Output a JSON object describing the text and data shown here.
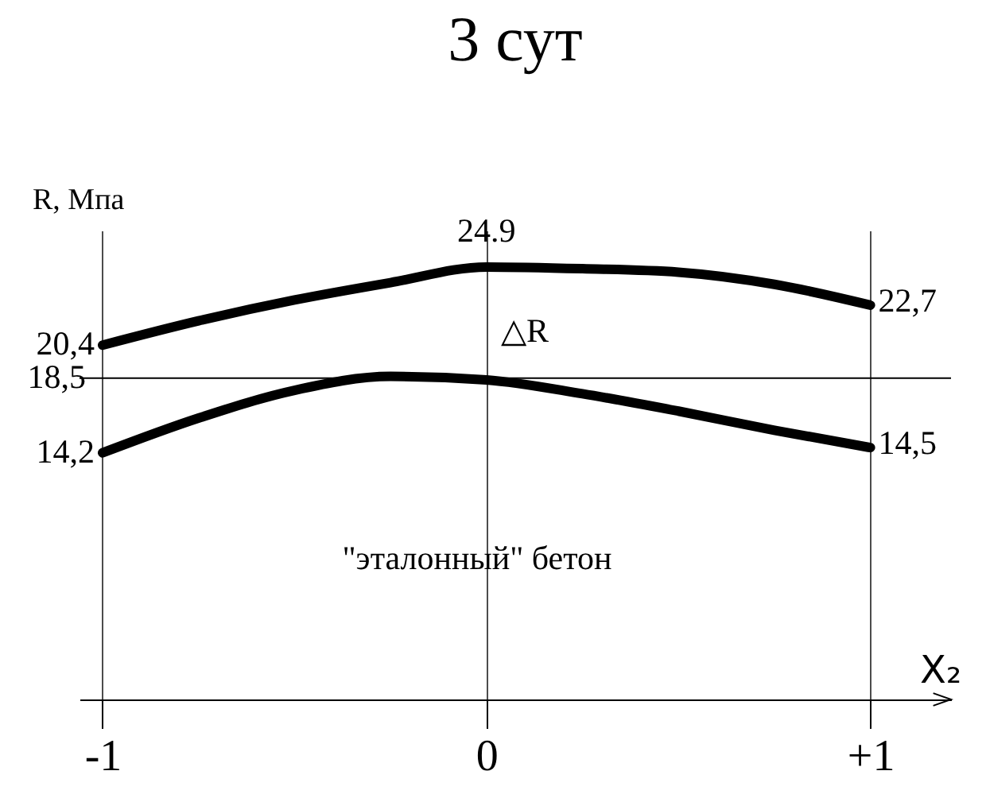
{
  "chart_data": {
    "type": "line",
    "title": "3 сут",
    "xlabel": "X₂",
    "ylabel": "R, Мпа",
    "x": [
      -1,
      -0.75,
      -0.5,
      -0.25,
      0,
      0.25,
      0.5,
      0.75,
      1
    ],
    "series": [
      {
        "color": "#000000",
        "values": [
          20.4,
          21.8,
          23.0,
          24.0,
          24.9,
          24.8,
          24.6,
          23.9,
          22.7
        ],
        "value_labels": [
          "20,4",
          null,
          null,
          null,
          "24.9",
          null,
          null,
          null,
          "22,7"
        ]
      },
      {
        "color": "#000000",
        "values": [
          14.2,
          16.2,
          17.8,
          18.6,
          18.4,
          17.6,
          16.6,
          15.5,
          14.5
        ],
        "value_labels": [
          "14,2",
          null,
          null,
          null,
          null,
          null,
          null,
          null,
          "14,5"
        ]
      }
    ],
    "xlim": [
      -1.06,
      1.21
    ],
    "ylim": [
      0,
      27
    ],
    "xticks": [
      -1,
      0,
      {
        "value": 1,
        "label": "+1"
      }
    ],
    "tick_labels": "x",
    "grid": "x",
    "line_style": "solid",
    "ref_lines": [
      {
        "axis": "y",
        "value": 18.5,
        "label": "18,5"
      }
    ],
    "annotations": [
      "△R",
      "\"эталонный\" бетон"
    ]
  }
}
